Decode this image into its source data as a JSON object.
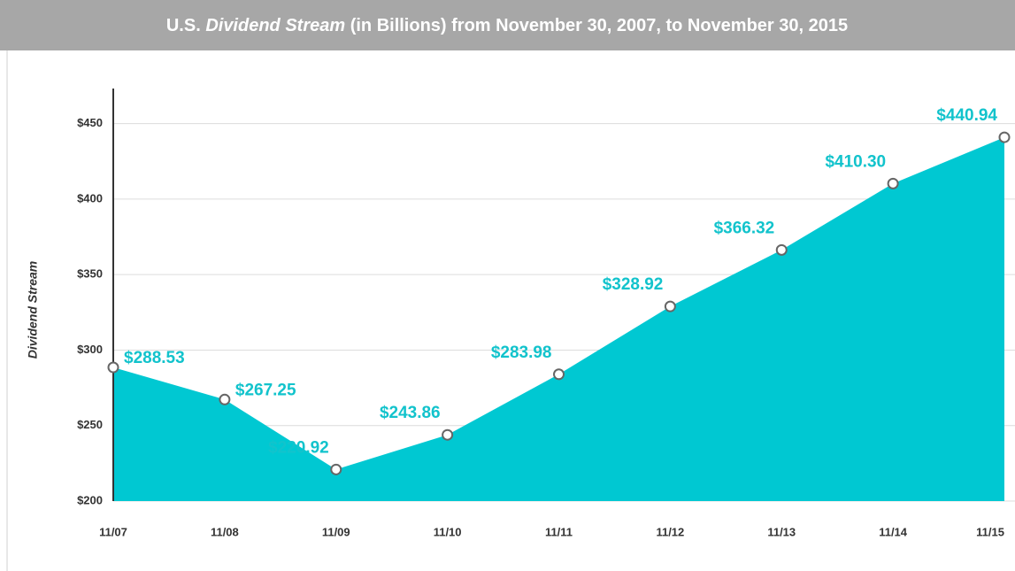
{
  "chart_data": {
    "type": "area",
    "title": [
      "U.S. ",
      "Dividend Stream",
      " (in Billions) from November 30, 2007, to November 30, 2015"
    ],
    "ylabel": "Dividend Stream",
    "categories": [
      "11/07",
      "11/08",
      "11/09",
      "11/10",
      "11/11",
      "11/12",
      "11/13",
      "11/14",
      "11/15"
    ],
    "values": [
      288.53,
      267.25,
      220.92,
      243.86,
      283.98,
      328.92,
      366.32,
      410.3,
      440.94
    ],
    "value_labels": [
      "$288.53",
      "$267.25",
      "$220.92",
      "$243.86",
      "$283.98",
      "$328.92",
      "$366.32",
      "$410.30",
      "$440.94"
    ],
    "color": "#00c8d2",
    "ylim": [
      200,
      475
    ],
    "yticks": [
      {
        "value": 200,
        "label": "$200"
      },
      {
        "value": 250,
        "label": "$250"
      },
      {
        "value": 300,
        "label": "$300"
      },
      {
        "value": 350,
        "label": "$350"
      },
      {
        "value": 400,
        "label": "$400"
      },
      {
        "value": 450,
        "label": "$450"
      }
    ],
    "grid": true
  }
}
